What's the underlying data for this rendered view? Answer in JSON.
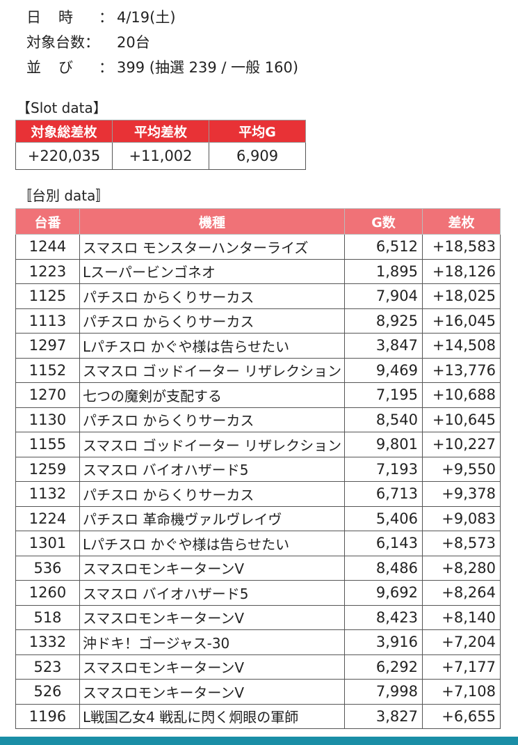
{
  "info": {
    "date_label": [
      "日",
      "時",
      "："
    ],
    "date_value": "4/19(土)",
    "count_label": "対象台数：",
    "count_value": "20台",
    "line_label": [
      "並",
      "び",
      "："
    ],
    "line_value": "399 (抽選 239 / 一般 160)"
  },
  "slot_section_title": "【Slot data】",
  "summary": {
    "headers": [
      "対象総差枚",
      "平均差枚",
      "平均G"
    ],
    "values": [
      "+220,035",
      "+11,002",
      "6,909"
    ]
  },
  "machine_section_title": "〚台別 data〛",
  "machine_table": {
    "headers": [
      "台番",
      "機種",
      "G数",
      "差枚"
    ],
    "rows": [
      [
        "1244",
        "スマスロ モンスターハンターライズ",
        "6,512",
        "+18,583"
      ],
      [
        "1223",
        "Lスーパービンゴネオ",
        "1,895",
        "+18,126"
      ],
      [
        "1125",
        "パチスロ からくりサーカス",
        "7,904",
        "+18,025"
      ],
      [
        "1113",
        "パチスロ からくりサーカス",
        "8,925",
        "+16,045"
      ],
      [
        "1297",
        "Lパチスロ かぐや様は告らせたい",
        "3,847",
        "+14,508"
      ],
      [
        "1152",
        "スマスロ ゴッドイーター リザレクション",
        "9,469",
        "+13,776"
      ],
      [
        "1270",
        "七つの魔剣が支配する",
        "7,195",
        "+10,688"
      ],
      [
        "1130",
        "パチスロ からくりサーカス",
        "8,540",
        "+10,645"
      ],
      [
        "1155",
        "スマスロ ゴッドイーター リザレクション",
        "9,801",
        "+10,227"
      ],
      [
        "1259",
        "スマスロ バイオハザード5",
        "7,193",
        "+9,550"
      ],
      [
        "1132",
        "パチスロ からくりサーカス",
        "6,713",
        "+9,378"
      ],
      [
        "1224",
        "パチスロ 革命機ヴァルヴレイヴ",
        "5,406",
        "+9,083"
      ],
      [
        "1301",
        "Lパチスロ かぐや様は告らせたい",
        "6,143",
        "+8,573"
      ],
      [
        "536",
        "スマスロモンキーターンV",
        "8,486",
        "+8,280"
      ],
      [
        "1260",
        "スマスロ バイオハザード5",
        "9,692",
        "+8,264"
      ],
      [
        "518",
        "スマスロモンキーターンV",
        "8,423",
        "+8,140"
      ],
      [
        "1332",
        "沖ドキ！ゴージャス-30",
        "3,916",
        "+7,204"
      ],
      [
        "523",
        "スマスロモンキーターンV",
        "6,292",
        "+7,177"
      ],
      [
        "526",
        "スマスロモンキーターンV",
        "7,998",
        "+7,108"
      ],
      [
        "1196",
        "L戦国乙女4 戦乱に閃く炯眼の軍師",
        "3,827",
        "+6,655"
      ]
    ]
  },
  "colors": {
    "summary_header": "#e83236",
    "table_header": "#f07277",
    "bottom_bar": "#1a8ea6"
  }
}
